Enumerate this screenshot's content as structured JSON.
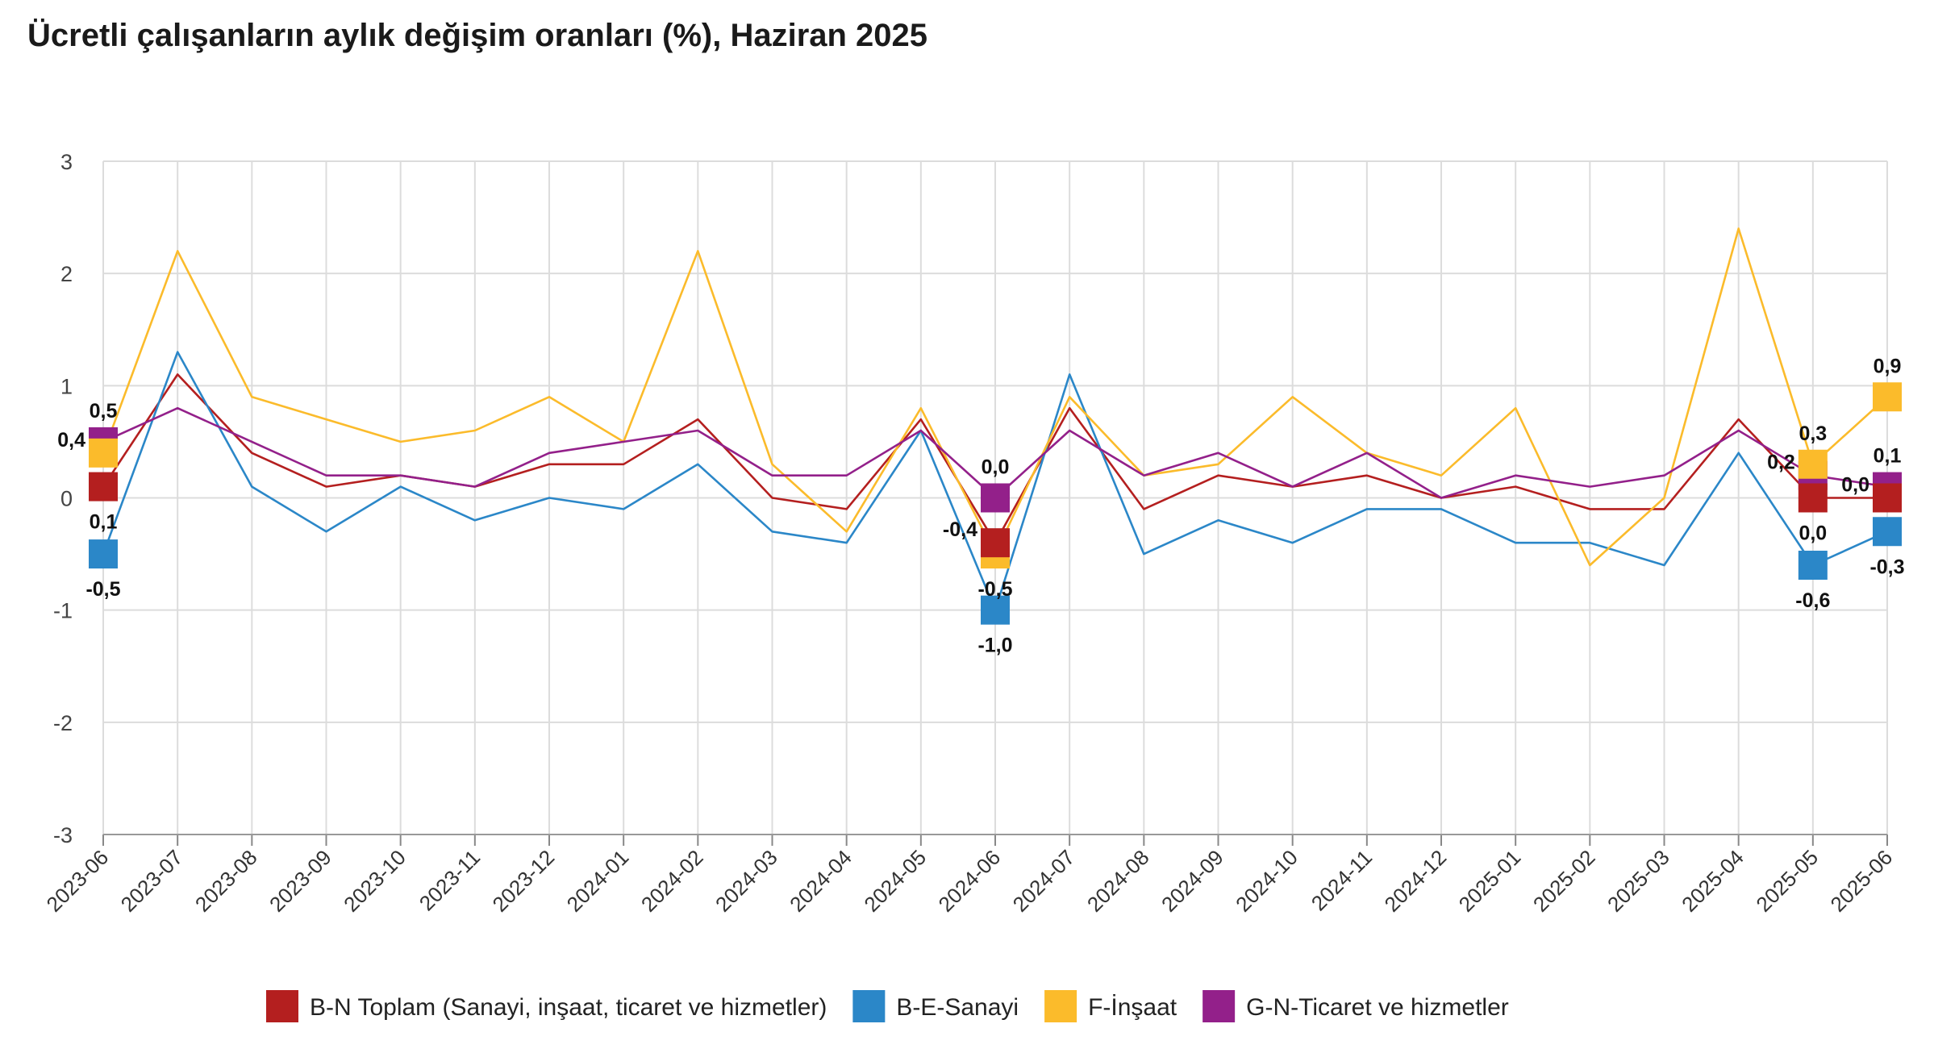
{
  "chart_data": {
    "type": "line",
    "title": "Ücretli çalışanların aylık değişim oranları (%), Haziran 2025",
    "xlabel": "",
    "ylabel": "",
    "ylim": [
      -3,
      3
    ],
    "yticks": [
      "3",
      "2",
      "1",
      "0",
      "-1",
      "-2",
      "-3"
    ],
    "categories": [
      "2023-06",
      "2023-07",
      "2023-08",
      "2023-09",
      "2023-10",
      "2023-11",
      "2023-12",
      "2024-01",
      "2024-02",
      "2024-03",
      "2024-04",
      "2024-05",
      "2024-06",
      "2024-07",
      "2024-08",
      "2024-09",
      "2024-10",
      "2024-11",
      "2024-12",
      "2025-01",
      "2025-02",
      "2025-03",
      "2025-04",
      "2025-05",
      "2025-06"
    ],
    "series": [
      {
        "name": "B-N Toplam (Sanayi, inşaat, ticaret ve hizmetler)",
        "color": "#b41f1f",
        "values": [
          0.1,
          1.1,
          0.4,
          0.1,
          0.2,
          0.1,
          0.3,
          0.3,
          0.7,
          0.0,
          -0.1,
          0.7,
          -0.4,
          0.8,
          -0.1,
          0.2,
          0.1,
          0.2,
          0.0,
          0.1,
          -0.1,
          -0.1,
          0.7,
          0.0,
          0.0
        ]
      },
      {
        "name": "B-E-Sanayi",
        "color": "#2b87c8",
        "values": [
          -0.5,
          1.3,
          0.1,
          -0.3,
          0.1,
          -0.2,
          0.0,
          -0.1,
          0.3,
          -0.3,
          -0.4,
          0.6,
          -1.0,
          1.1,
          -0.5,
          -0.2,
          -0.4,
          -0.1,
          -0.1,
          -0.4,
          -0.4,
          -0.6,
          0.4,
          -0.6,
          -0.3
        ]
      },
      {
        "name": "F-İnşaat",
        "color": "#fbbb2b",
        "values": [
          0.4,
          2.2,
          0.9,
          0.7,
          0.5,
          0.6,
          0.9,
          0.5,
          2.2,
          0.3,
          -0.3,
          0.8,
          -0.5,
          0.9,
          0.2,
          0.3,
          0.9,
          0.4,
          0.2,
          0.8,
          -0.6,
          0.0,
          2.4,
          0.3,
          0.9
        ]
      },
      {
        "name": "G-N-Ticaret ve hizmetler",
        "color": "#93208a",
        "values": [
          0.5,
          0.8,
          0.5,
          0.2,
          0.2,
          0.1,
          0.4,
          0.5,
          0.6,
          0.2,
          0.2,
          0.6,
          0.0,
          0.6,
          0.2,
          0.4,
          0.1,
          0.4,
          0.0,
          0.2,
          0.1,
          0.2,
          0.6,
          0.2,
          0.1
        ]
      }
    ],
    "markers": [
      {
        "series": 3,
        "index": 0
      },
      {
        "series": 2,
        "index": 0
      },
      {
        "series": 0,
        "index": 0
      },
      {
        "series": 1,
        "index": 0
      },
      {
        "series": 3,
        "index": 12
      },
      {
        "series": 2,
        "index": 12
      },
      {
        "series": 0,
        "index": 12
      },
      {
        "series": 1,
        "index": 12
      },
      {
        "series": 3,
        "index": 23
      },
      {
        "series": 2,
        "index": 23
      },
      {
        "series": 0,
        "index": 23
      },
      {
        "series": 1,
        "index": 23
      },
      {
        "series": 2,
        "index": 24
      },
      {
        "series": 3,
        "index": 24
      },
      {
        "series": 0,
        "index": 24
      },
      {
        "series": 1,
        "index": 24
      }
    ],
    "data_labels": [
      {
        "text": "0,5",
        "index": 0,
        "value": 0.5,
        "pos": "above"
      },
      {
        "text": "0,4",
        "index": 0,
        "value": 0.4,
        "pos": "left"
      },
      {
        "text": "0,1",
        "index": 0,
        "value": 0.1,
        "pos": "below"
      },
      {
        "text": "-0,5",
        "index": 0,
        "value": -0.5,
        "pos": "below"
      },
      {
        "text": "0,0",
        "index": 12,
        "value": 0.0,
        "pos": "above"
      },
      {
        "text": "-0,4",
        "index": 12,
        "value": -0.4,
        "pos": "left"
      },
      {
        "text": "-0,5",
        "index": 12,
        "value": -0.5,
        "pos": "below"
      },
      {
        "text": "-1,0",
        "index": 12,
        "value": -1.0,
        "pos": "below"
      },
      {
        "text": "0,3",
        "index": 23,
        "value": 0.3,
        "pos": "above"
      },
      {
        "text": "0,2",
        "index": 23,
        "value": 0.2,
        "pos": "left"
      },
      {
        "text": "0,0",
        "index": 23,
        "value": 0.0,
        "pos": "below"
      },
      {
        "text": "-0,6",
        "index": 23,
        "value": -0.6,
        "pos": "below"
      },
      {
        "text": "0,9",
        "index": 24,
        "value": 0.9,
        "pos": "above"
      },
      {
        "text": "0,1",
        "index": 24,
        "value": 0.1,
        "pos": "above"
      },
      {
        "text": "0,0",
        "index": 24,
        "value": 0.0,
        "pos": "left"
      },
      {
        "text": "-0,3",
        "index": 24,
        "value": -0.3,
        "pos": "below"
      }
    ],
    "grid": true,
    "legend_position": "bottom"
  }
}
